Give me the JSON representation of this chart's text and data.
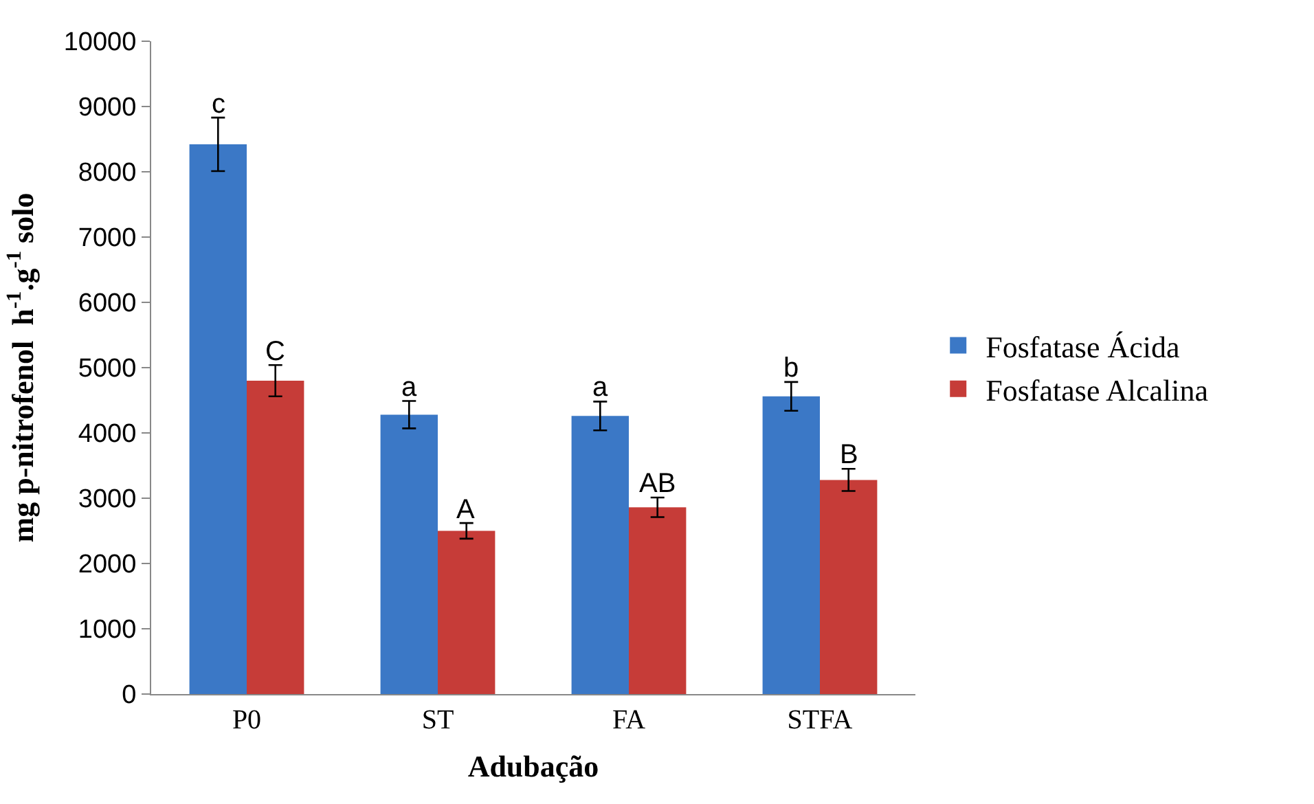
{
  "chart_data": {
    "type": "bar",
    "xlabel": "Adubação",
    "ylabel": "mg p-nitrofenol  h$^{-1}$.g$^{-1}$ solo",
    "categories": [
      "P0",
      "ST",
      "FA",
      "STFA"
    ],
    "series": [
      {
        "name": "Fosfatase Ácida",
        "color": "#3b78c6",
        "values": [
          8420,
          4280,
          4260,
          4560
        ],
        "errors": [
          410,
          210,
          220,
          220
        ],
        "value_labels": [
          "c",
          "a",
          "a",
          "b"
        ]
      },
      {
        "name": "Fosfatase Alcalina",
        "color": "#c63c38",
        "values": [
          4800,
          2500,
          2860,
          3280
        ],
        "errors": [
          240,
          120,
          150,
          170
        ],
        "value_labels": [
          "C",
          "A",
          "AB",
          "B"
        ]
      }
    ],
    "ylim": [
      0,
      10000
    ],
    "yticks": [
      0,
      1000,
      2000,
      3000,
      4000,
      5000,
      6000,
      7000,
      8000,
      9000,
      10000
    ],
    "legend": "right"
  }
}
